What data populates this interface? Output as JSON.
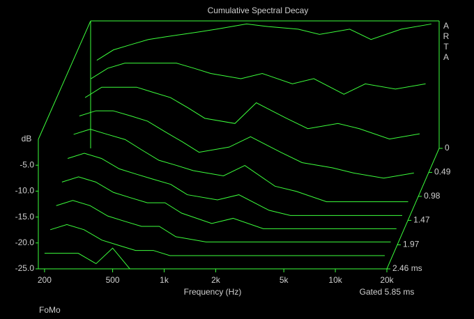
{
  "chart_data": {
    "type": "waterfall",
    "title": "Cumulative Spectral Decay",
    "x_label": "Frequency (Hz)",
    "y_label": "dB",
    "gate_label": "Gated 5.85 ms",
    "footer": "FoMo",
    "brand": [
      "A",
      "R",
      "T",
      "A"
    ],
    "color": "#3cff3c",
    "log_x": true,
    "x": [
      200,
      250,
      315,
      400,
      500,
      630,
      800,
      1000,
      1500,
      2000,
      3000,
      4000,
      6000,
      8000,
      12000,
      18000
    ],
    "xlim": [
      184,
      20000
    ],
    "xticks": [
      200,
      500,
      {
        "value": 1000,
        "label": "1k"
      },
      {
        "value": 2000,
        "label": "2k"
      },
      {
        "value": 5000,
        "label": "5k"
      },
      {
        "value": 10000,
        "label": "10k"
      },
      {
        "value": 20000,
        "label": "20k"
      }
    ],
    "ylim": [
      -25,
      0
    ],
    "yticks": [
      {
        "value": -5,
        "label": "-5.0"
      },
      {
        "value": -10,
        "label": "-10.0"
      },
      {
        "value": -15,
        "label": "-15.0"
      },
      {
        "value": -20,
        "label": "-20.0"
      },
      {
        "value": -25,
        "label": "-25.0"
      }
    ],
    "zlim": [
      0,
      2.46
    ],
    "zticks": [
      0,
      0.49,
      0.98,
      1.47,
      1.97,
      {
        "value": 2.46,
        "label": "2.46 ms"
      }
    ],
    "series": [
      {
        "z": 0,
        "values": [
          -8,
          -6,
          -5,
          -4,
          -3.5,
          -3,
          -2.5,
          -2,
          -1,
          -1.5,
          -2,
          -3,
          -2,
          -4,
          -2,
          -1
        ]
      },
      {
        "z": 0.27,
        "values": [
          -9,
          -7,
          -6,
          -6,
          -6,
          -6,
          -7,
          -8,
          -9,
          -8,
          -10,
          -9,
          -12,
          -10,
          -11,
          -10
        ]
      },
      {
        "z": 0.55,
        "values": [
          -10,
          -8,
          -8,
          -8,
          -9,
          -10,
          -12,
          -14,
          -15,
          -11,
          -14,
          -16,
          -15,
          -16,
          -18,
          -17
        ]
      },
      {
        "z": 0.82,
        "values": [
          -11,
          -10,
          -10,
          -11,
          -12,
          -14,
          -16,
          -18,
          -17,
          -15,
          -18,
          -20,
          -21,
          -22,
          -23,
          -22
        ]
      },
      {
        "z": 1.09,
        "values": [
          -12,
          -11,
          -12,
          -13,
          -15,
          -17,
          -18,
          -19,
          -20,
          -18,
          -22,
          -23,
          -25,
          -25,
          -25,
          -25
        ]
      },
      {
        "z": 1.37,
        "values": [
          -14,
          -13,
          -14,
          -16,
          -17,
          -18,
          -19,
          -21,
          -22,
          -21,
          -24,
          -25,
          -25,
          -25,
          -25,
          -25
        ]
      },
      {
        "z": 1.64,
        "values": [
          -16,
          -15,
          -16,
          -18,
          -19,
          -20,
          -20,
          -22,
          -24,
          -23,
          -25,
          -25,
          -25,
          -25,
          -25,
          -25
        ]
      },
      {
        "z": 1.91,
        "values": [
          -18,
          -17,
          -18,
          -20,
          -21,
          -22,
          -22,
          -24,
          -25,
          -25,
          -25,
          -25,
          -25,
          -25,
          -25,
          -25
        ]
      },
      {
        "z": 2.19,
        "values": [
          -20,
          -19,
          -20,
          -22,
          -23,
          -24,
          -24,
          -25,
          -25,
          -25,
          -25,
          -25,
          -25,
          -25,
          -25,
          -25
        ]
      },
      {
        "z": 2.46,
        "values": [
          -22,
          -22,
          -22,
          -24,
          -21,
          -25,
          -25,
          -25,
          -25,
          -25,
          -25,
          -25,
          -25,
          -25,
          -25,
          -25
        ]
      }
    ]
  }
}
